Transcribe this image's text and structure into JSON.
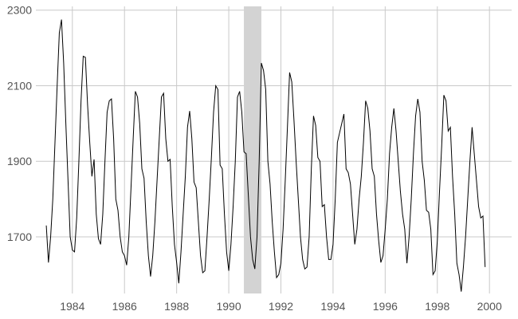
{
  "chart_data": {
    "type": "line",
    "title": "",
    "xlabel": "",
    "ylabel": "",
    "xlim": [
      1982.6,
      2000.85
    ],
    "ylim": [
      1550,
      2310
    ],
    "grid": true,
    "legend": "none",
    "x_ticks": [
      1984,
      1986,
      1988,
      1990,
      1992,
      1994,
      1996,
      1998,
      2000
    ],
    "x_tick_labels": [
      "1984",
      "1986",
      "1988",
      "1990",
      "1992",
      "1994",
      "1996",
      "1998",
      "2000"
    ],
    "y_ticks": [
      1700,
      1900,
      2100,
      2300
    ],
    "y_tick_labels": [
      "1700",
      "1900",
      "2100",
      "2300"
    ],
    "shaded_regions": [
      {
        "x_start": 1990.58,
        "x_end": 1991.25,
        "color": "#d3d3d3"
      }
    ],
    "series": [
      {
        "color": "#000000",
        "x_start": 1983.0,
        "x_step": 0.0833333,
        "values": [
          1730,
          1632,
          1700,
          1800,
          1950,
          2100,
          2240,
          2275,
          2160,
          2000,
          1850,
          1700,
          1665,
          1660,
          1750,
          1900,
          2060,
          2178,
          2175,
          2050,
          1950,
          1860,
          1905,
          1760,
          1695,
          1680,
          1760,
          1900,
          2030,
          2060,
          2065,
          1960,
          1800,
          1770,
          1700,
          1660,
          1650,
          1625,
          1700,
          1830,
          1960,
          2085,
          2070,
          2000,
          1880,
          1855,
          1740,
          1650,
          1595,
          1650,
          1740,
          1850,
          1960,
          2070,
          2080,
          1960,
          1900,
          1905,
          1780,
          1680,
          1632,
          1577,
          1660,
          1760,
          1860,
          1990,
          2033,
          1960,
          1845,
          1830,
          1740,
          1650,
          1605,
          1610,
          1700,
          1800,
          1910,
          2030,
          2100,
          2090,
          1890,
          1880,
          1760,
          1660,
          1610,
          1680,
          1780,
          1900,
          2070,
          2085,
          2030,
          1925,
          1920,
          1810,
          1700,
          1640,
          1615,
          1700,
          1900,
          2160,
          2140,
          2090,
          1900,
          1840,
          1740,
          1660,
          1592,
          1600,
          1630,
          1720,
          1850,
          1990,
          2135,
          2110,
          2010,
          1900,
          1800,
          1700,
          1640,
          1615,
          1620,
          1700,
          1880,
          2020,
          1995,
          1910,
          1900,
          1780,
          1785,
          1700,
          1640,
          1640,
          1680,
          1800,
          1950,
          1975,
          2000,
          2025,
          1880,
          1870,
          1840,
          1760,
          1680,
          1720,
          1800,
          1860,
          1950,
          2060,
          2040,
          1980,
          1880,
          1860,
          1760,
          1690,
          1632,
          1650,
          1720,
          1800,
          1920,
          1990,
          2040,
          1980,
          1900,
          1820,
          1760,
          1720,
          1630,
          1700,
          1800,
          1920,
          2020,
          2065,
          2030,
          1900,
          1850,
          1770,
          1765,
          1720,
          1600,
          1610,
          1690,
          1820,
          1940,
          2075,
          2060,
          1980,
          1990,
          1860,
          1760,
          1630,
          1600,
          1555,
          1620,
          1700,
          1800,
          1900,
          1990,
          1920,
          1850,
          1780,
          1750,
          1755,
          1620
        ]
      }
    ]
  }
}
